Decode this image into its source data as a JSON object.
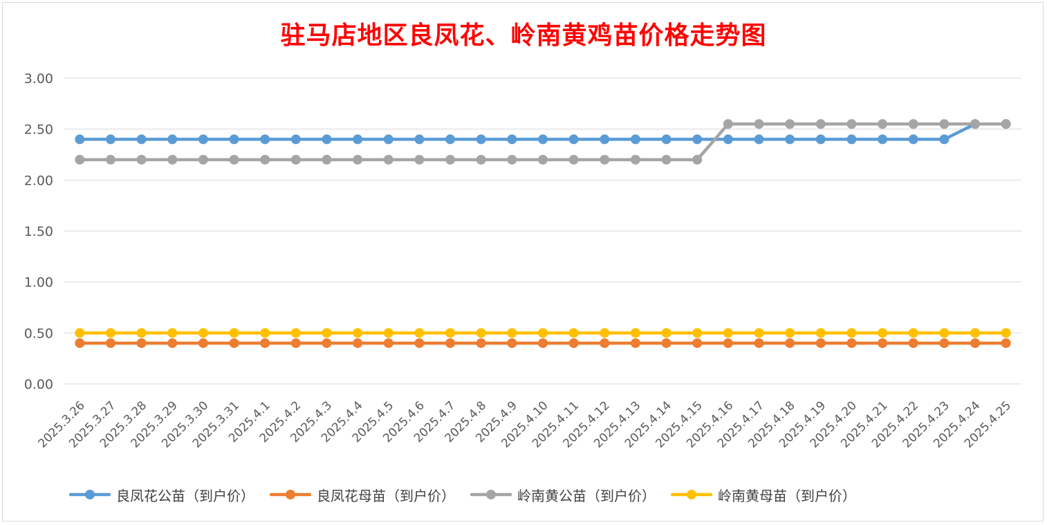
{
  "chart_data": {
    "type": "line",
    "title": "驻马店地区良凤花、岭南黄鸡苗价格走势图",
    "xlabel": "",
    "ylabel": "",
    "ylim": [
      0,
      3
    ],
    "yticks": [
      "0.00",
      "0.50",
      "1.00",
      "1.50",
      "2.00",
      "2.50",
      "3.00"
    ],
    "grid": "horizontal",
    "legend_position": "bottom",
    "categories": [
      "2025.3.26",
      "2025.3.27",
      "2025.3.28",
      "2025.3.29",
      "2025.3.30",
      "2025.3.31",
      "2025.4.1",
      "2025.4.2",
      "2025.4.3",
      "2025.4.4",
      "2025.4.5",
      "2025.4.6",
      "2025.4.7",
      "2025.4.8",
      "2025.4.9",
      "2025.4.10",
      "2025.4.11",
      "2025.4.12",
      "2025.4.13",
      "2025.4.14",
      "2025.4.15",
      "2025.4.16",
      "2025.4.17",
      "2025.4.18",
      "2025.4.19",
      "2025.4.20",
      "2025.4.21",
      "2025.4.22",
      "2025.4.23",
      "2025.4.24",
      "2025.4.25"
    ],
    "series": [
      {
        "name": "良凤花公苗（到户价）",
        "color": "#5b9bd5",
        "values": [
          2.4,
          2.4,
          2.4,
          2.4,
          2.4,
          2.4,
          2.4,
          2.4,
          2.4,
          2.4,
          2.4,
          2.4,
          2.4,
          2.4,
          2.4,
          2.4,
          2.4,
          2.4,
          2.4,
          2.4,
          2.4,
          2.4,
          2.4,
          2.4,
          2.4,
          2.4,
          2.4,
          2.4,
          2.4,
          2.55,
          2.55
        ]
      },
      {
        "name": "良凤花母苗（到户价）",
        "color": "#ed7d31",
        "values": [
          0.4,
          0.4,
          0.4,
          0.4,
          0.4,
          0.4,
          0.4,
          0.4,
          0.4,
          0.4,
          0.4,
          0.4,
          0.4,
          0.4,
          0.4,
          0.4,
          0.4,
          0.4,
          0.4,
          0.4,
          0.4,
          0.4,
          0.4,
          0.4,
          0.4,
          0.4,
          0.4,
          0.4,
          0.4,
          0.4,
          0.4
        ]
      },
      {
        "name": "岭南黄公苗（到户价）",
        "color": "#a5a5a5",
        "values": [
          2.2,
          2.2,
          2.2,
          2.2,
          2.2,
          2.2,
          2.2,
          2.2,
          2.2,
          2.2,
          2.2,
          2.2,
          2.2,
          2.2,
          2.2,
          2.2,
          2.2,
          2.2,
          2.2,
          2.2,
          2.2,
          2.55,
          2.55,
          2.55,
          2.55,
          2.55,
          2.55,
          2.55,
          2.55,
          2.55,
          2.55
        ]
      },
      {
        "name": "岭南黄母苗（到户价）",
        "color": "#ffc000",
        "values": [
          0.5,
          0.5,
          0.5,
          0.5,
          0.5,
          0.5,
          0.5,
          0.5,
          0.5,
          0.5,
          0.5,
          0.5,
          0.5,
          0.5,
          0.5,
          0.5,
          0.5,
          0.5,
          0.5,
          0.5,
          0.5,
          0.5,
          0.5,
          0.5,
          0.5,
          0.5,
          0.5,
          0.5,
          0.5,
          0.5,
          0.5
        ]
      }
    ]
  }
}
